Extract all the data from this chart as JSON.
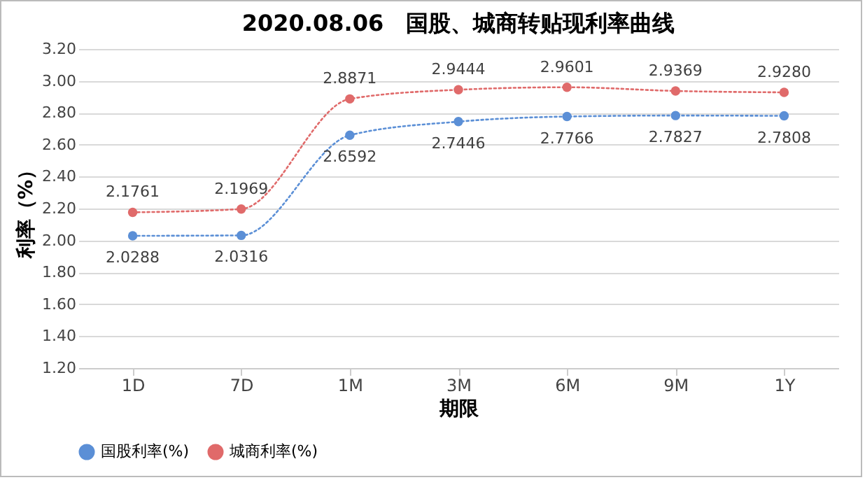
{
  "chart_data": {
    "type": "line",
    "title": "2020.08.06　国股、城商转贴现利率曲线",
    "xlabel": "期限",
    "ylabel": "利率（%）",
    "categories": [
      "1D",
      "7D",
      "1M",
      "3M",
      "6M",
      "9M",
      "1Y"
    ],
    "series": [
      {
        "name": "国股利率(%)",
        "color": "#5b8fd6",
        "values": [
          2.0288,
          2.0316,
          2.6592,
          2.7446,
          2.7766,
          2.7827,
          2.7808
        ],
        "value_labels": [
          "2.0288",
          "2.0316",
          "2.6592",
          "2.7446",
          "2.7766",
          "2.7827",
          "2.7808"
        ]
      },
      {
        "name": "城商利率(%)",
        "color": "#e06a6a",
        "values": [
          2.1761,
          2.1969,
          2.8871,
          2.9444,
          2.9601,
          2.9369,
          2.928
        ],
        "value_labels": [
          "2.1761",
          "2.1969",
          "2.8871",
          "2.9444",
          "2.9601",
          "2.9369",
          "2.9280"
        ]
      }
    ],
    "ylim": [
      1.2,
      3.2
    ],
    "yticks": [
      {
        "value": 1.2,
        "label": "1.20"
      },
      {
        "value": 1.4,
        "label": "1.40"
      },
      {
        "value": 1.6,
        "label": "1.60"
      },
      {
        "value": 1.8,
        "label": "1.80"
      },
      {
        "value": 2.0,
        "label": "2.00"
      },
      {
        "value": 2.2,
        "label": "2.20"
      },
      {
        "value": 2.4,
        "label": "2.40"
      },
      {
        "value": 2.6,
        "label": "2.60"
      },
      {
        "value": 2.8,
        "label": "2.80"
      },
      {
        "value": 3.0,
        "label": "3.00"
      },
      {
        "value": 3.2,
        "label": "3.20"
      }
    ],
    "grid": "y",
    "legend": "bottom",
    "marker": "circle",
    "line_style": "dotted"
  }
}
